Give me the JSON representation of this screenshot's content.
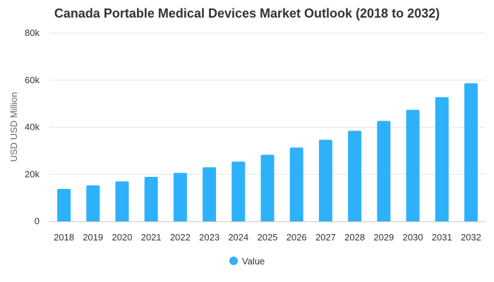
{
  "chart_data": {
    "type": "bar",
    "title": "Canada Portable Medical Devices Market Outlook (2018 to 2032)",
    "xlabel": "",
    "ylabel": "USD USD Million",
    "categories": [
      "2018",
      "2019",
      "2020",
      "2021",
      "2022",
      "2023",
      "2024",
      "2025",
      "2026",
      "2027",
      "2028",
      "2029",
      "2030",
      "2031",
      "2032"
    ],
    "series": [
      {
        "name": "Value",
        "color": "#2eb1fb",
        "values": [
          13800,
          15300,
          17000,
          18900,
          20600,
          23000,
          25400,
          28300,
          31400,
          34700,
          38500,
          42700,
          47400,
          52800,
          58700
        ]
      }
    ],
    "ylim": [
      0,
      80000
    ],
    "yticks": [
      {
        "value": 0,
        "label": "0"
      },
      {
        "value": 20000,
        "label": "20k"
      },
      {
        "value": 40000,
        "label": "40k"
      },
      {
        "value": 60000,
        "label": "60k"
      },
      {
        "value": 80000,
        "label": "80k"
      }
    ],
    "grid": true,
    "legend_position": "bottom-center"
  }
}
